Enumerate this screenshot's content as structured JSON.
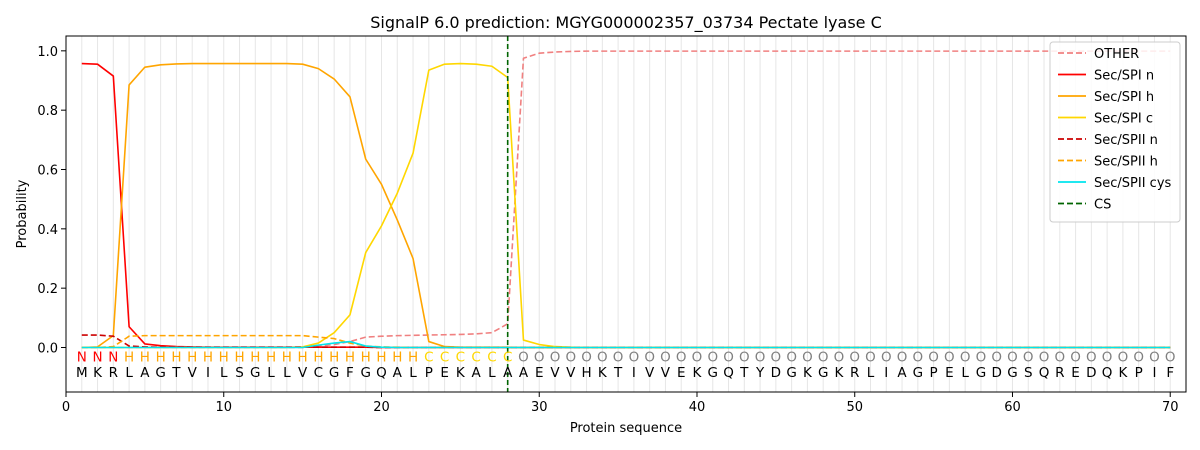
{
  "chart_data": {
    "type": "line",
    "title": "SignalP 6.0 prediction: MGYG000002357_03734 Pectate lyase C",
    "xlabel": "Protein sequence",
    "ylabel": "Probability",
    "xlim": [
      0,
      71
    ],
    "ylim": [
      -0.15,
      1.05
    ],
    "x_ticks": [
      0,
      10,
      20,
      30,
      40,
      50,
      60,
      70
    ],
    "y_ticks": [
      0.0,
      0.2,
      0.4,
      0.6,
      0.8,
      1.0
    ],
    "x_tick_labels": [
      "0",
      "10",
      "20",
      "30",
      "40",
      "50",
      "60",
      "70"
    ],
    "y_tick_labels": [
      "0.0",
      "0.2",
      "0.4",
      "0.6",
      "0.8",
      "1.0"
    ],
    "legend_position": "top-right",
    "sequence": [
      "M",
      "K",
      "R",
      "L",
      "A",
      "G",
      "T",
      "V",
      "I",
      "L",
      "S",
      "G",
      "L",
      "L",
      "V",
      "C",
      "G",
      "F",
      "G",
      "Q",
      "A",
      "L",
      "P",
      "E",
      "K",
      "A",
      "L",
      "A",
      "A",
      "E",
      "V",
      "V",
      "H",
      "K",
      "T",
      "I",
      "V",
      "V",
      "E",
      "K",
      "G",
      "Q",
      "T",
      "Y",
      "D",
      "G",
      "K",
      "G",
      "K",
      "R",
      "L",
      "I",
      "A",
      "G",
      "P",
      "E",
      "L",
      "G",
      "D",
      "G",
      "S",
      "Q",
      "R",
      "E",
      "D",
      "Q",
      "K",
      "P",
      "I",
      "F"
    ],
    "regions": [
      "N",
      "N",
      "N",
      "H",
      "H",
      "H",
      "H",
      "H",
      "H",
      "H",
      "H",
      "H",
      "H",
      "H",
      "H",
      "H",
      "H",
      "H",
      "H",
      "H",
      "H",
      "H",
      "C",
      "C",
      "C",
      "C",
      "C",
      "C",
      "O",
      "O",
      "O",
      "O",
      "O",
      "O",
      "O",
      "O",
      "O",
      "O",
      "O",
      "O",
      "O",
      "O",
      "O",
      "O",
      "O",
      "O",
      "O",
      "O",
      "O",
      "O",
      "O",
      "O",
      "O",
      "O",
      "O",
      "O",
      "O",
      "O",
      "O",
      "O",
      "O",
      "O",
      "O",
      "O",
      "O",
      "O",
      "O",
      "O",
      "O",
      "O"
    ],
    "region_colors": {
      "N": "#ff0000",
      "H": "#ffa500",
      "C": "#ffd700",
      "O": "#808080"
    },
    "cleavage_site": 28,
    "series": [
      {
        "name": "OTHER",
        "color": "#f08080",
        "dash": "dashed",
        "values": [
          0.0,
          0.0,
          0.0,
          0.0,
          0.0,
          0.0,
          0.0,
          0.0,
          0.0,
          0.0,
          0.0,
          0.0,
          0.0,
          0.0,
          0.0,
          0.005,
          0.01,
          0.02,
          0.035,
          0.038,
          0.04,
          0.041,
          0.042,
          0.043,
          0.044,
          0.046,
          0.05,
          0.08,
          0.975,
          0.992,
          0.996,
          0.998,
          0.999,
          0.999,
          0.999,
          0.999,
          0.999,
          0.999,
          0.999,
          0.999,
          0.999,
          0.999,
          0.999,
          0.999,
          0.999,
          0.999,
          0.999,
          0.999,
          0.999,
          0.999,
          0.999,
          0.999,
          0.999,
          0.999,
          0.999,
          0.999,
          0.999,
          0.999,
          0.999,
          0.999,
          0.999,
          0.999,
          0.999,
          0.999,
          0.999,
          0.999,
          0.999,
          0.999,
          0.999,
          0.999
        ]
      },
      {
        "name": "Sec/SPI n",
        "color": "#ff0000",
        "dash": "solid",
        "values": [
          0.957,
          0.955,
          0.915,
          0.07,
          0.012,
          0.006,
          0.003,
          0.002,
          0.001,
          0.001,
          0.001,
          0.001,
          0.001,
          0.001,
          0.001,
          0.001,
          0.001,
          0.001,
          0.001,
          0.0,
          0.0,
          0.0,
          0.0,
          0.0,
          0.0,
          0.0,
          0.0,
          0.0,
          0.0,
          0.0,
          0.0,
          0.0,
          0.0,
          0.0,
          0.0,
          0.0,
          0.0,
          0.0,
          0.0,
          0.0,
          0.0,
          0.0,
          0.0,
          0.0,
          0.0,
          0.0,
          0.0,
          0.0,
          0.0,
          0.0,
          0.0,
          0.0,
          0.0,
          0.0,
          0.0,
          0.0,
          0.0,
          0.0,
          0.0,
          0.0,
          0.0,
          0.0,
          0.0,
          0.0,
          0.0,
          0.0,
          0.0,
          0.0,
          0.0,
          0.0
        ]
      },
      {
        "name": "Sec/SPI h",
        "color": "#ffa500",
        "dash": "solid",
        "values": [
          0.0,
          0.002,
          0.04,
          0.885,
          0.945,
          0.953,
          0.956,
          0.957,
          0.957,
          0.957,
          0.957,
          0.957,
          0.957,
          0.957,
          0.955,
          0.94,
          0.905,
          0.845,
          0.635,
          0.55,
          0.43,
          0.3,
          0.02,
          0.003,
          0.001,
          0.001,
          0.001,
          0.001,
          0.0,
          0.0,
          0.0,
          0.0,
          0.0,
          0.0,
          0.0,
          0.0,
          0.0,
          0.0,
          0.0,
          0.0,
          0.0,
          0.0,
          0.0,
          0.0,
          0.0,
          0.0,
          0.0,
          0.0,
          0.0,
          0.0,
          0.0,
          0.0,
          0.0,
          0.0,
          0.0,
          0.0,
          0.0,
          0.0,
          0.0,
          0.0,
          0.0,
          0.0,
          0.0,
          0.0,
          0.0,
          0.0,
          0.0,
          0.0,
          0.0,
          0.0
        ]
      },
      {
        "name": "Sec/SPI c",
        "color": "#ffd700",
        "dash": "solid",
        "values": [
          0.0,
          0.0,
          0.0,
          0.0,
          0.0,
          0.0,
          0.0,
          0.0,
          0.0,
          0.0,
          0.0,
          0.0,
          0.0,
          0.0,
          0.002,
          0.015,
          0.05,
          0.11,
          0.32,
          0.41,
          0.52,
          0.655,
          0.935,
          0.955,
          0.957,
          0.955,
          0.948,
          0.91,
          0.025,
          0.01,
          0.003,
          0.001,
          0.0,
          0.0,
          0.0,
          0.0,
          0.0,
          0.0,
          0.0,
          0.0,
          0.0,
          0.0,
          0.0,
          0.0,
          0.0,
          0.0,
          0.0,
          0.0,
          0.0,
          0.0,
          0.0,
          0.0,
          0.0,
          0.0,
          0.0,
          0.0,
          0.0,
          0.0,
          0.0,
          0.0,
          0.0,
          0.0,
          0.0,
          0.0,
          0.0,
          0.0,
          0.0,
          0.0,
          0.0,
          0.0
        ]
      },
      {
        "name": "Sec/SPII n",
        "color": "#cc0000",
        "dash": "dashed",
        "values": [
          0.042,
          0.042,
          0.038,
          0.005,
          0.002,
          0.001,
          0.001,
          0.001,
          0.001,
          0.001,
          0.001,
          0.001,
          0.001,
          0.001,
          0.001,
          0.001,
          0.001,
          0.001,
          0.001,
          0.0,
          0.0,
          0.0,
          0.0,
          0.0,
          0.0,
          0.0,
          0.0,
          0.0,
          0.0,
          0.0,
          0.0,
          0.0,
          0.0,
          0.0,
          0.0,
          0.0,
          0.0,
          0.0,
          0.0,
          0.0,
          0.0,
          0.0,
          0.0,
          0.0,
          0.0,
          0.0,
          0.0,
          0.0,
          0.0,
          0.0,
          0.0,
          0.0,
          0.0,
          0.0,
          0.0,
          0.0,
          0.0,
          0.0,
          0.0,
          0.0,
          0.0,
          0.0,
          0.0,
          0.0,
          0.0,
          0.0,
          0.0,
          0.0,
          0.0,
          0.0
        ]
      },
      {
        "name": "Sec/SPII h",
        "color": "#ffa500",
        "dash": "dashed",
        "values": [
          0.0,
          0.0,
          0.003,
          0.038,
          0.04,
          0.04,
          0.04,
          0.04,
          0.04,
          0.04,
          0.04,
          0.04,
          0.04,
          0.04,
          0.04,
          0.035,
          0.03,
          0.015,
          0.005,
          0.002,
          0.001,
          0.0,
          0.0,
          0.0,
          0.0,
          0.0,
          0.0,
          0.0,
          0.0,
          0.0,
          0.0,
          0.0,
          0.0,
          0.0,
          0.0,
          0.0,
          0.0,
          0.0,
          0.0,
          0.0,
          0.0,
          0.0,
          0.0,
          0.0,
          0.0,
          0.0,
          0.0,
          0.0,
          0.0,
          0.0,
          0.0,
          0.0,
          0.0,
          0.0,
          0.0,
          0.0,
          0.0,
          0.0,
          0.0,
          0.0,
          0.0,
          0.0,
          0.0,
          0.0,
          0.0,
          0.0,
          0.0,
          0.0,
          0.0,
          0.0
        ]
      },
      {
        "name": "Sec/SPII cys",
        "color": "#00e5ee",
        "dash": "solid",
        "values": [
          0.0,
          0.0,
          0.0,
          0.0,
          0.0,
          0.0,
          0.0,
          0.0,
          0.0,
          0.0,
          0.0,
          0.0,
          0.0,
          0.0,
          0.0,
          0.008,
          0.015,
          0.02,
          0.005,
          0.001,
          0.0,
          0.0,
          0.0,
          0.0,
          0.0,
          0.0,
          0.0,
          0.0,
          0.0,
          0.0,
          0.0,
          0.0,
          0.0,
          0.0,
          0.0,
          0.0,
          0.0,
          0.0,
          0.0,
          0.0,
          0.0,
          0.0,
          0.0,
          0.0,
          0.0,
          0.0,
          0.0,
          0.0,
          0.0,
          0.0,
          0.0,
          0.0,
          0.0,
          0.0,
          0.0,
          0.0,
          0.0,
          0.0,
          0.0,
          0.0,
          0.0,
          0.0,
          0.0,
          0.0,
          0.0,
          0.0,
          0.0,
          0.0,
          0.0,
          0.0
        ]
      }
    ],
    "cs_legend": {
      "name": "CS",
      "color": "#006400",
      "dash": "dashed"
    }
  }
}
